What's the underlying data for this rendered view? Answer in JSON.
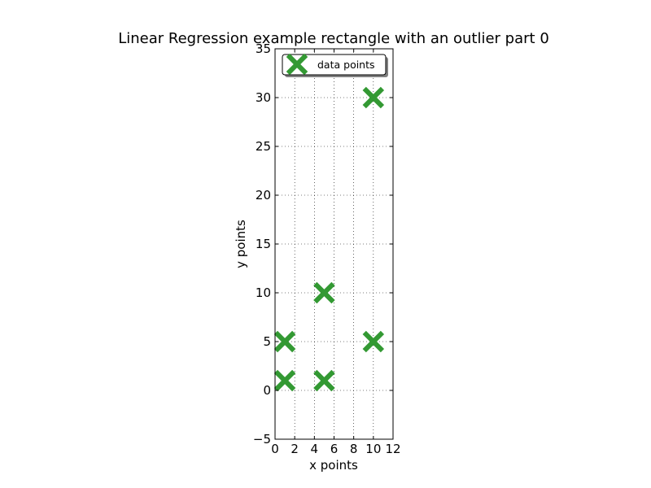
{
  "chart_data": {
    "type": "scatter",
    "title": "Linear Regression example rectangle with an outlier part 0",
    "xlabel": "x points",
    "ylabel": "y points",
    "xlim": [
      0,
      12
    ],
    "ylim": [
      -5,
      35
    ],
    "x_ticks": [
      "0",
      "2",
      "4",
      "6",
      "8",
      "10",
      "12"
    ],
    "y_ticks": [
      "−5",
      "0",
      "5",
      "10",
      "15",
      "20",
      "25",
      "30",
      "35"
    ],
    "grid": true,
    "legend_position": "top",
    "series": [
      {
        "name": "data points",
        "marker": "x",
        "color": "#339933",
        "points": [
          {
            "x": 1,
            "y": 1
          },
          {
            "x": 1,
            "y": 5
          },
          {
            "x": 5,
            "y": 1
          },
          {
            "x": 5,
            "y": 10
          },
          {
            "x": 10,
            "y": 5
          },
          {
            "x": 10,
            "y": 30
          }
        ]
      }
    ]
  }
}
